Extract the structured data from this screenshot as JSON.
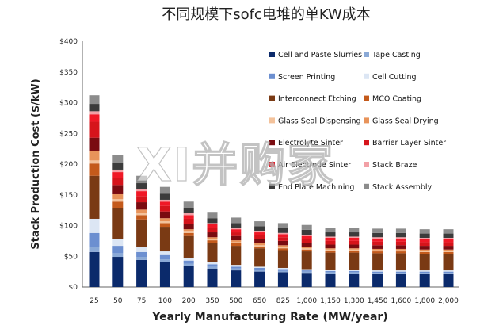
{
  "chart_data": {
    "type": "bar",
    "stacked": true,
    "title": "不同规模下sofc电堆的单KW成本",
    "xlabel": "Yearly Manufacturing Rate (MW/year)",
    "ylabel": "Stack Production Cost ($/kW)",
    "ylim": [
      0,
      400
    ],
    "yticks": [
      "$0",
      "$50",
      "$100",
      "$150",
      "$200",
      "$250",
      "$300",
      "$350",
      "$400"
    ],
    "grid": false,
    "legend_position": "right",
    "categories": [
      "25",
      "50",
      "75",
      "100",
      "200",
      "350",
      "500",
      "650",
      "825",
      "1,000",
      "1,150",
      "1,300",
      "1,450",
      "1,600",
      "1,800",
      "2,000"
    ],
    "series": [
      {
        "name": "Cell and Paste Slurries",
        "color": "#0b2a6b",
        "values": [
          57,
          49,
          44,
          40,
          34,
          30,
          27,
          25,
          24,
          23,
          22,
          22,
          21,
          21,
          21,
          21
        ]
      },
      {
        "name": "Tape Casting",
        "color": "#8aa9d6",
        "values": [
          8,
          6,
          5,
          5,
          4,
          3,
          3,
          3,
          2,
          2,
          2,
          2,
          2,
          2,
          2,
          2
        ]
      },
      {
        "name": "Screen Printing",
        "color": "#6c8fd0",
        "values": [
          23,
          12,
          8,
          7,
          5,
          4,
          3,
          3,
          3,
          2,
          2,
          2,
          2,
          2,
          2,
          2
        ]
      },
      {
        "name": "Cell Cutting",
        "color": "#dce6f4",
        "values": [
          23,
          11,
          8,
          6,
          4,
          3,
          3,
          2,
          2,
          2,
          2,
          2,
          2,
          2,
          2,
          2
        ]
      },
      {
        "name": "Interconnect Etching",
        "color": "#7a3a14",
        "values": [
          70,
          51,
          45,
          40,
          36,
          32,
          31,
          30,
          29,
          29,
          28,
          28,
          28,
          28,
          27,
          27
        ]
      },
      {
        "name": "MCO Coating",
        "color": "#c45a1b",
        "values": [
          20,
          10,
          7,
          6,
          5,
          4,
          4,
          3,
          3,
          3,
          3,
          3,
          3,
          3,
          3,
          3
        ]
      },
      {
        "name": "Glass Seal Dispensing",
        "color": "#f3c29b",
        "values": [
          5,
          4,
          3,
          3,
          2,
          2,
          2,
          2,
          2,
          2,
          2,
          2,
          2,
          2,
          2,
          2
        ]
      },
      {
        "name": "Glass Seal Drying",
        "color": "#e8935a",
        "values": [
          15,
          8,
          6,
          5,
          4,
          3,
          3,
          3,
          3,
          2,
          2,
          2,
          2,
          2,
          2,
          2
        ]
      },
      {
        "name": "Electrolyte Sinter",
        "color": "#7a0b10",
        "values": [
          22,
          15,
          12,
          11,
          9,
          8,
          7,
          7,
          7,
          7,
          6,
          6,
          6,
          6,
          6,
          6
        ]
      },
      {
        "name": "Barrier Layer Sinter",
        "color": "#d6141b",
        "values": [
          26,
          12,
          10,
          9,
          8,
          7,
          6,
          6,
          6,
          6,
          6,
          6,
          6,
          6,
          6,
          6
        ]
      },
      {
        "name": "Air Electrode Sinter",
        "color": "#f01826",
        "values": [
          12,
          9,
          8,
          7,
          6,
          6,
          5,
          5,
          5,
          5,
          5,
          5,
          5,
          5,
          5,
          5
        ]
      },
      {
        "name": "Stack Braze",
        "color": "#f2a0a6",
        "values": [
          5,
          4,
          3,
          3,
          3,
          2,
          2,
          2,
          2,
          2,
          2,
          2,
          2,
          2,
          2,
          2
        ]
      },
      {
        "name": "End Plate Machining",
        "color": "#3b3b3b",
        "values": [
          12,
          11,
          10,
          10,
          9,
          8,
          8,
          8,
          8,
          8,
          7,
          7,
          7,
          7,
          7,
          7
        ]
      },
      {
        "name": "Stack Assembly",
        "color": "#8c8c8c",
        "values": [
          14,
          13,
          12,
          11,
          10,
          9,
          9,
          8,
          8,
          8,
          7,
          7,
          7,
          7,
          7,
          7
        ]
      }
    ]
  },
  "watermark": "XI并购家"
}
